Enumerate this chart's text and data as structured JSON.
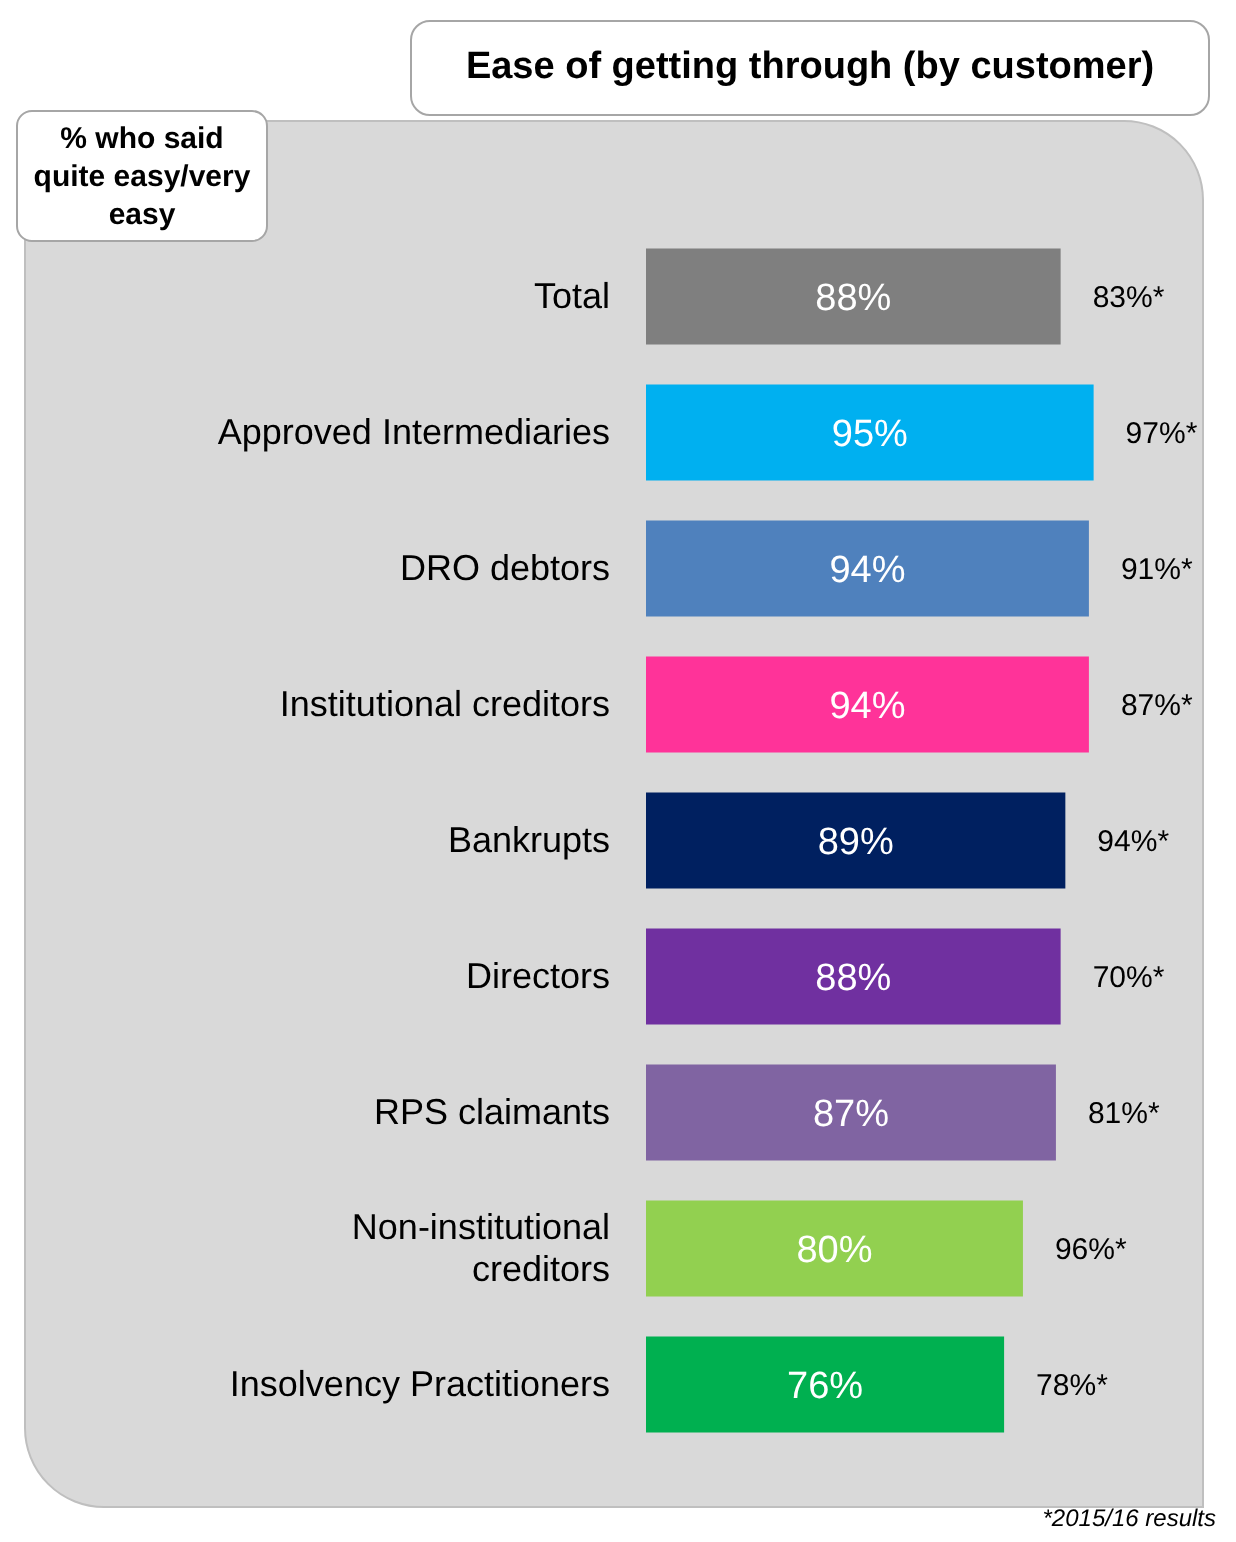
{
  "chart_data": {
    "type": "bar",
    "orientation": "horizontal",
    "title": "Ease of getting through (by customer)",
    "ylabel": "% who said quite easy/very easy",
    "categories": [
      "Total",
      "Approved Intermediaries",
      "DRO debtors",
      "Institutional creditors",
      "Bankrupts",
      "Directors",
      "RPS claimants",
      "Non-institutional creditors",
      "Insolvency Practitioners"
    ],
    "values": [
      88,
      95,
      94,
      94,
      89,
      88,
      87,
      80,
      76
    ],
    "colors": [
      "#7f7f7f",
      "#00b0f0",
      "#4f81bd",
      "#ff3399",
      "#002060",
      "#7030a0",
      "#8064a2",
      "#92d050",
      "#00b050"
    ],
    "value_labels": [
      "88%",
      "95%",
      "94%",
      "94%",
      "89%",
      "88%",
      "87%",
      "80%",
      "76%"
    ],
    "tick_labels": "y",
    "grid": false,
    "legend": false,
    "annotations": [
      {
        "text": "83%*",
        "x": 88,
        "y": "Total"
      },
      {
        "text": "97%*",
        "x": 95,
        "y": "Approved Intermediaries"
      },
      {
        "text": "91%*",
        "x": 94,
        "y": "DRO debtors"
      },
      {
        "text": "87%*",
        "x": 94,
        "y": "Institutional creditors"
      },
      {
        "text": "94%*",
        "x": 89,
        "y": "Bankrupts"
      },
      {
        "text": "70%*",
        "x": 88,
        "y": "Directors"
      },
      {
        "text": "81%*",
        "x": 87,
        "y": "RPS claimants"
      },
      {
        "text": "96%*",
        "x": 80,
        "y": "Non-institutional creditors"
      },
      {
        "text": "78%*",
        "x": 76,
        "y": "Insolvency Practitioners"
      },
      "*2015/16 results"
    ]
  }
}
